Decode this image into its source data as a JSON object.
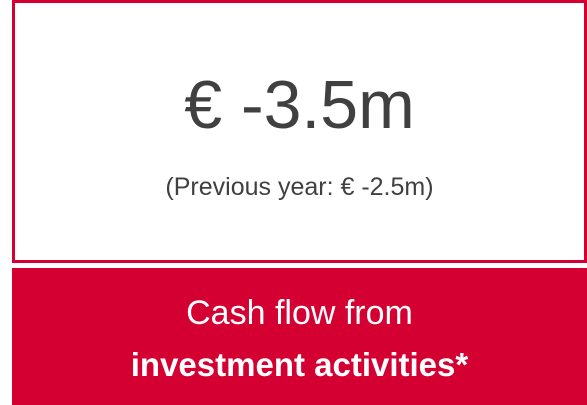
{
  "kpi": {
    "value": "€ -3.5m",
    "previous": "(Previous year: € -2.5m)"
  },
  "caption": {
    "line1": "Cash flow from",
    "line2": "investment activities*"
  }
}
